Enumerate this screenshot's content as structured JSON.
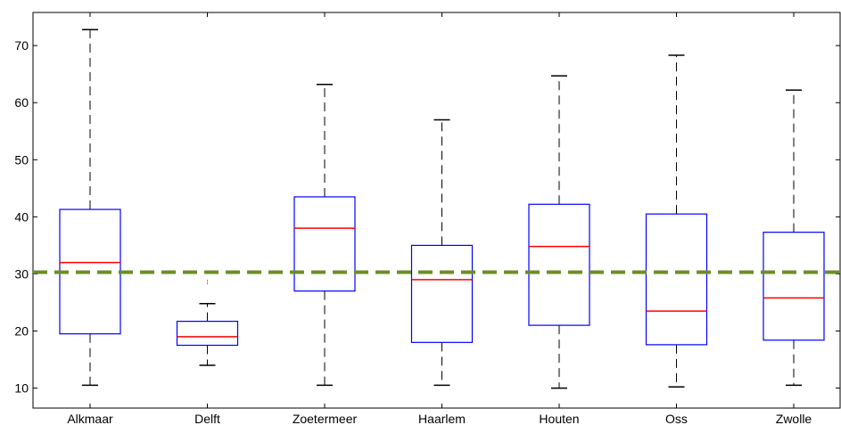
{
  "chart_data": {
    "type": "boxplot",
    "title": "",
    "xlabel": "",
    "ylabel": "",
    "categories": [
      "Alkmaar",
      "Delft",
      "Zoetermeer",
      "Haarlem",
      "Houten",
      "Oss",
      "Zwolle"
    ],
    "ylim": [
      6.5,
      75.8
    ],
    "yticks": [
      10,
      20,
      30,
      40,
      50,
      60,
      70
    ],
    "grid": false,
    "boxes": [
      {
        "label": "Alkmaar",
        "whisker_low": 10.5,
        "q1": 19.5,
        "median": 32.0,
        "q3": 41.3,
        "whisker_high": 72.8,
        "outliers": []
      },
      {
        "label": "Delft",
        "whisker_low": 14.0,
        "q1": 17.5,
        "median": 19.0,
        "q3": 21.7,
        "whisker_high": 24.8,
        "outliers": [
          28.5
        ]
      },
      {
        "label": "Zoetermeer",
        "whisker_low": 10.5,
        "q1": 27.0,
        "median": 38.0,
        "q3": 43.5,
        "whisker_high": 63.2,
        "outliers": []
      },
      {
        "label": "Haarlem",
        "whisker_low": 10.5,
        "q1": 18.0,
        "median": 29.0,
        "q3": 35.0,
        "whisker_high": 57.0,
        "outliers": []
      },
      {
        "label": "Houten",
        "whisker_low": 10.0,
        "q1": 21.0,
        "median": 34.8,
        "q3": 42.2,
        "whisker_high": 64.7,
        "outliers": []
      },
      {
        "label": "Oss",
        "whisker_low": 10.2,
        "q1": 17.6,
        "median": 23.5,
        "q3": 40.5,
        "whisker_high": 68.3,
        "outliers": []
      },
      {
        "label": "Zwolle",
        "whisker_low": 10.5,
        "q1": 18.4,
        "median": 25.8,
        "q3": 37.3,
        "whisker_high": 62.2,
        "outliers": []
      }
    ],
    "reference_line": {
      "y": 30.3,
      "style": "dashed"
    },
    "colors": {
      "box": "#0000ff",
      "median": "#ff0000",
      "whisker": "#000000",
      "outlier": "#ff0000",
      "reference_line": "#6b8e23",
      "axes": "#000000"
    }
  }
}
